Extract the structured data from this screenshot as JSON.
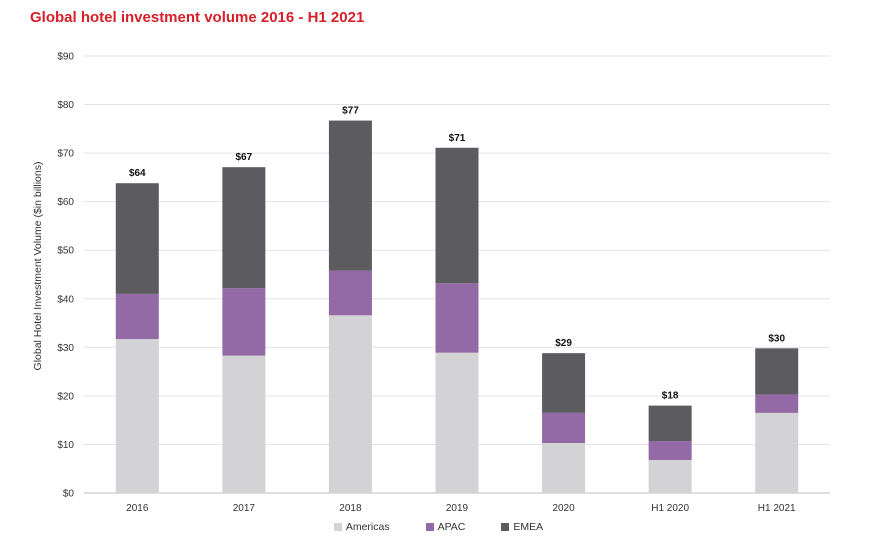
{
  "chart_data": {
    "type": "bar",
    "stacked": true,
    "title": "Global hotel investment volume 2016 - H1 2021",
    "ylabel": "Global Hotel Investment Volume ($in billions)",
    "xlabel": "",
    "ylim": [
      0,
      90
    ],
    "yticks": [
      "$0",
      "$10",
      "$20",
      "$30",
      "$40",
      "$50",
      "$60",
      "$70",
      "$80",
      "$90"
    ],
    "grid": true,
    "legend_position": "bottom",
    "categories": [
      "2016",
      "2017",
      "2018",
      "2019",
      "2020",
      "H1 2020",
      "H1 2021"
    ],
    "totals": [
      "$64",
      "$67",
      "$77",
      "$71",
      "$29",
      "$18",
      "$30"
    ],
    "series": [
      {
        "name": "Americas",
        "color": "#d3d3d5",
        "values": [
          31.7,
          28.3,
          36.6,
          28.9,
          10.3,
          6.8,
          16.5
        ]
      },
      {
        "name": "APAC",
        "color": "#946aa6",
        "values": [
          9.3,
          13.9,
          9.2,
          14.3,
          6.2,
          3.9,
          3.8
        ]
      },
      {
        "name": "EMEA",
        "color": "#5b5b60",
        "values": [
          22.8,
          24.9,
          30.9,
          27.9,
          12.3,
          7.3,
          9.5
        ]
      }
    ]
  }
}
